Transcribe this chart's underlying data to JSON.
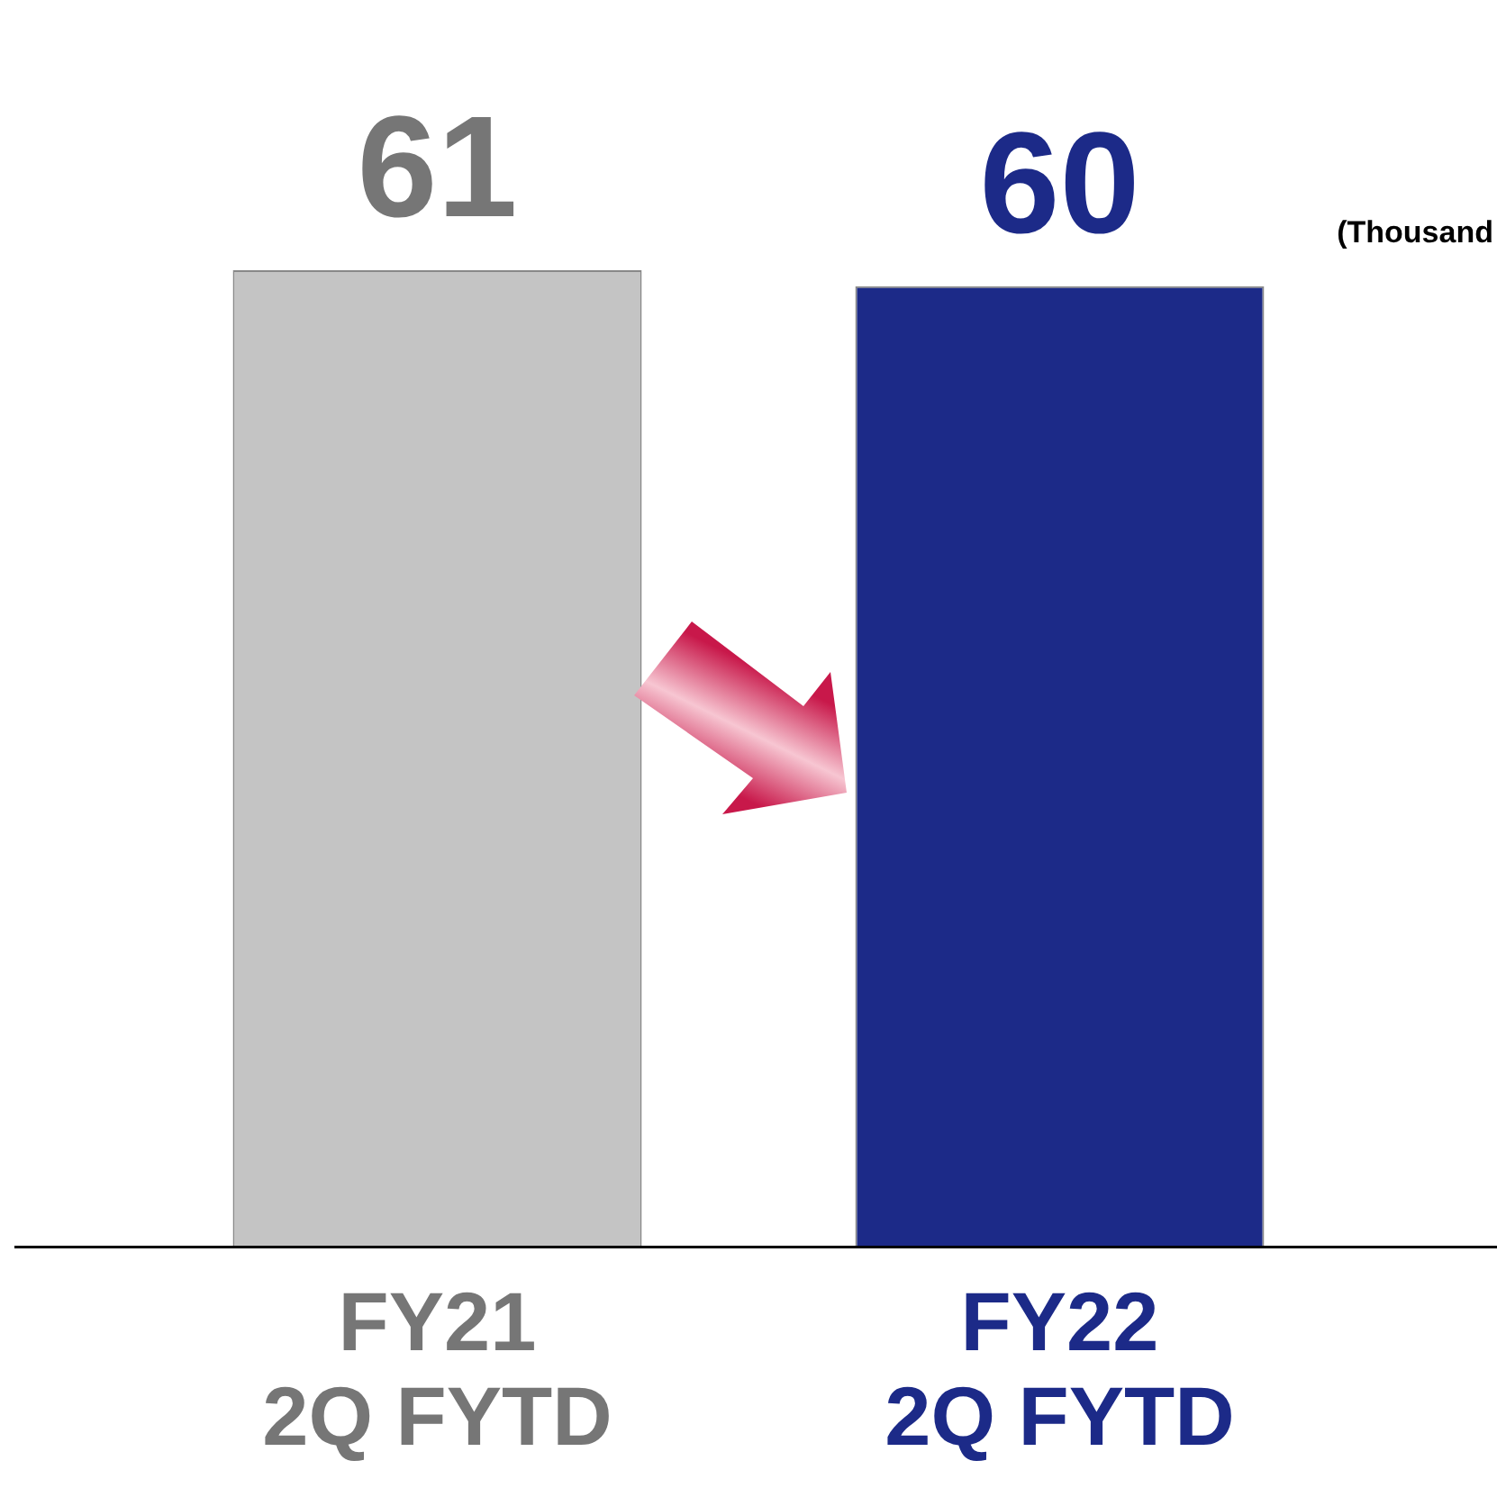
{
  "chart_data": {
    "type": "bar",
    "categories": [
      "FY21\n2Q FYTD",
      "FY22\n2Q FYTD"
    ],
    "values": [
      61,
      60
    ],
    "colors": [
      "#c4c4c4",
      "#1c2a88"
    ],
    "data_labels": true,
    "tick_labels": "x",
    "grid": false,
    "legend": false,
    "annotations": [
      "(Thousand"
    ]
  }
}
